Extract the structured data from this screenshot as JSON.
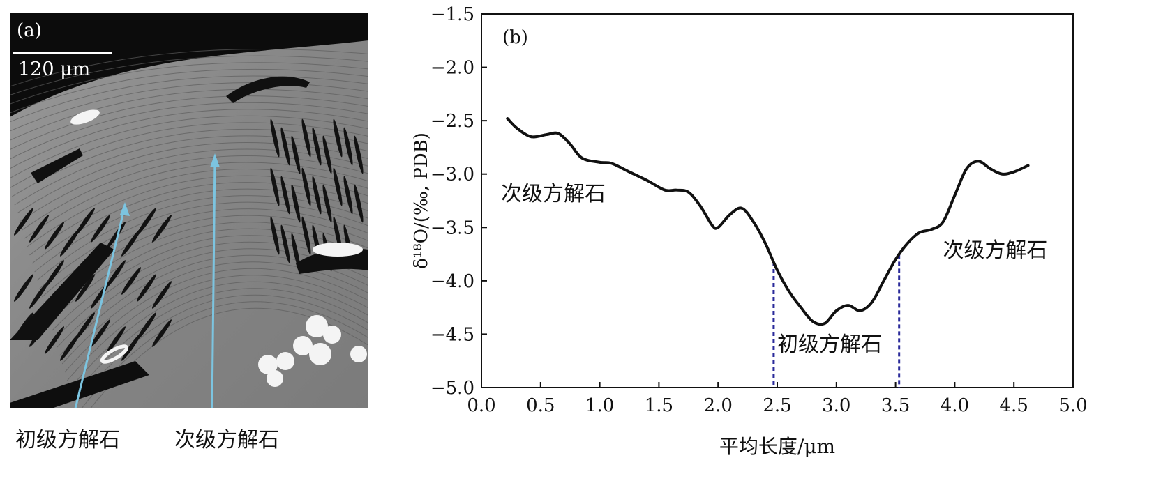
{
  "panel_a": {
    "label": "(a)",
    "scale_bar": "120 μm",
    "captions": {
      "primary": "初级方解石",
      "secondary": "次级方解石"
    },
    "arrow_color": "#7cc4e0"
  },
  "chart_data": {
    "type": "line",
    "panel_label": "(b)",
    "xlabel": "平均长度/μm",
    "ylabel": "δ¹⁸O/(‰, PDB)",
    "xlim": [
      0.0,
      5.0
    ],
    "ylim": [
      -5.0,
      -1.5
    ],
    "xticks": [
      "0.0",
      "0.5",
      "1.0",
      "1.5",
      "2.0",
      "2.5",
      "3.0",
      "3.5",
      "4.0",
      "4.5",
      "5.0"
    ],
    "yticks": [
      "-1.5",
      "-2.0",
      "-2.5",
      "-3.0",
      "-3.5",
      "-4.0",
      "-4.5",
      "-5.0"
    ],
    "grid": false,
    "series": [
      {
        "color": "#111111",
        "x": [
          0.22,
          0.3,
          0.42,
          0.55,
          0.65,
          0.75,
          0.85,
          1.0,
          1.1,
          1.25,
          1.4,
          1.55,
          1.65,
          1.75,
          1.85,
          1.95,
          2.0,
          2.1,
          2.2,
          2.3,
          2.4,
          2.5,
          2.6,
          2.7,
          2.8,
          2.9,
          3.0,
          3.1,
          3.2,
          3.3,
          3.4,
          3.5,
          3.6,
          3.7,
          3.8,
          3.9,
          4.0,
          4.1,
          4.2,
          4.3,
          4.4,
          4.5,
          4.62
        ],
        "y": [
          -2.48,
          -2.57,
          -2.65,
          -2.63,
          -2.62,
          -2.72,
          -2.85,
          -2.89,
          -2.9,
          -2.98,
          -3.06,
          -3.15,
          -3.15,
          -3.17,
          -3.3,
          -3.48,
          -3.5,
          -3.38,
          -3.32,
          -3.45,
          -3.65,
          -3.9,
          -4.1,
          -4.25,
          -4.38,
          -4.4,
          -4.28,
          -4.23,
          -4.28,
          -4.2,
          -4.0,
          -3.8,
          -3.65,
          -3.55,
          -3.52,
          -3.45,
          -3.2,
          -2.95,
          -2.88,
          -2.95,
          -3.0,
          -2.98,
          -2.92
        ]
      }
    ],
    "reference_lines": {
      "x": [
        2.47,
        3.53
      ],
      "color": "#2a2a9a",
      "style": "dashed"
    },
    "annotations": {
      "secondary_left": "次级方解石",
      "primary_mid": "初级方解石",
      "secondary_right": "次级方解石"
    }
  }
}
